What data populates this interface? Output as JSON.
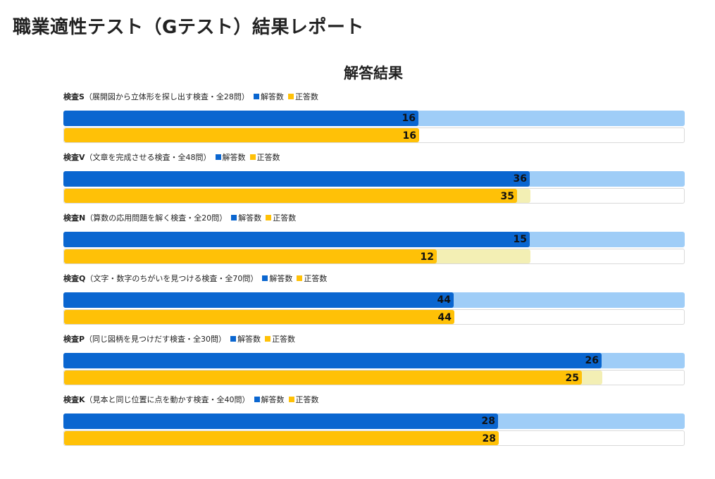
{
  "page": {
    "title": "職業適性テスト（Gテスト）結果レポート"
  },
  "chart_data": {
    "type": "bar",
    "orientation": "horizontal",
    "title": "解答結果",
    "legend": [
      "解答数",
      "正答数"
    ],
    "colors": {
      "answered": "#0a66d0",
      "answered_remaining": "#9fcdf7",
      "correct": "#ffc107",
      "correct_remaining": "#f3efb4"
    },
    "tests": [
      {
        "label": "検査S",
        "desc": "（展開図から立体形を探し出す検査・全28問）",
        "total": 28,
        "answered": 16,
        "correct": 16
      },
      {
        "label": "検査V",
        "desc": "（文章を完成させる検査・全48問）",
        "total": 48,
        "answered": 36,
        "correct": 35
      },
      {
        "label": "検査N",
        "desc": "（算数の応用問題を解く検査・全20問）",
        "total": 20,
        "answered": 15,
        "correct": 12
      },
      {
        "label": "検査Q",
        "desc": "（文字・数字のちがいを見つける検査・全70問）",
        "total": 70,
        "answered": 44,
        "correct": 44
      },
      {
        "label": "検査P",
        "desc": "（同じ図柄を見つけだす検査・全30問）",
        "total": 30,
        "answered": 26,
        "correct": 25
      },
      {
        "label": "検査K",
        "desc": "（見本と同じ位置に点を動かす検査・全40問）",
        "total": 40,
        "answered": 28,
        "correct": 28
      }
    ]
  }
}
